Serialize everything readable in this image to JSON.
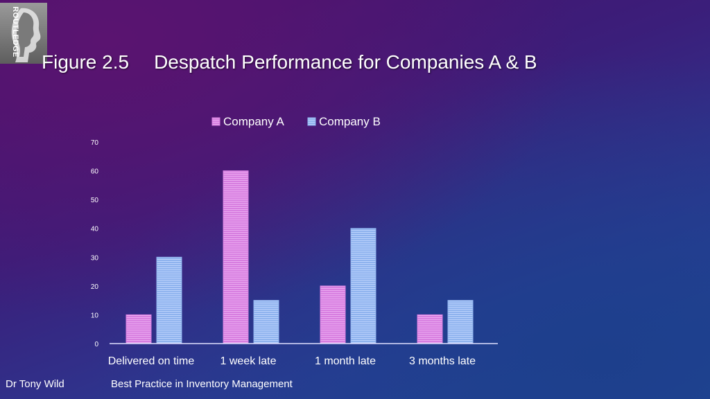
{
  "logo": {
    "text": "ROUTLEDGE",
    "icon": "profile-silhouette-icon"
  },
  "title": {
    "figure": "Figure 2.5",
    "text": "Despatch Performance for Companies A & B"
  },
  "chart_data": {
    "type": "bar",
    "categories": [
      "Delivered on time",
      "1 week late",
      "1 month late",
      "3 months late"
    ],
    "series": [
      {
        "name": "Company A",
        "values": [
          10,
          60,
          20,
          10
        ],
        "color": "#d77ee0"
      },
      {
        "name": "Company B",
        "values": [
          30,
          15,
          40,
          15
        ],
        "color": "#8fb3ee"
      }
    ],
    "ylim": [
      0,
      70
    ],
    "yticks": [
      0,
      10,
      20,
      30,
      40,
      50,
      60,
      70
    ],
    "grid": false,
    "legend": "top-center"
  },
  "footer": {
    "author": "Dr Tony Wild",
    "book": "Best Practice in Inventory Management"
  }
}
